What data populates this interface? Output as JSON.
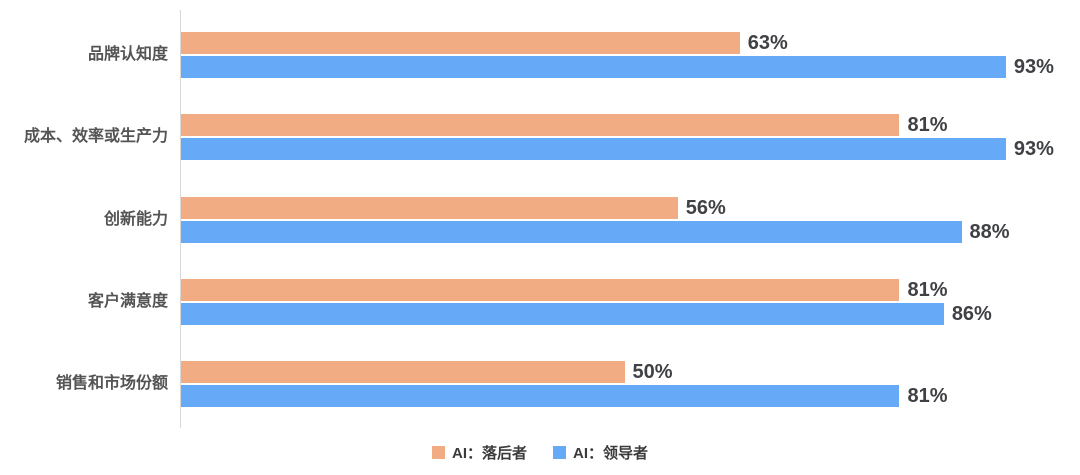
{
  "chart_data": {
    "type": "bar",
    "orientation": "horizontal",
    "title": "",
    "categories": [
      "品牌认知度",
      "成本、效率或生产力",
      "创新能力",
      "客户满意度",
      "销售和市场份额"
    ],
    "series": [
      {
        "name": "AI：落后者",
        "color": "#F2AC83",
        "values": [
          63,
          81,
          56,
          81,
          50
        ]
      },
      {
        "name": "AI：领导者",
        "color": "#66A9F7",
        "values": [
          93,
          93,
          88,
          86,
          81
        ]
      }
    ],
    "value_labels": [
      [
        "63%",
        "81%",
        "56%",
        "81%",
        "50%"
      ],
      [
        "93%",
        "93%",
        "88%",
        "86%",
        "81%"
      ]
    ],
    "value_suffix": "%",
    "xlim": [
      0,
      100
    ],
    "grid": false,
    "legend_position": "bottom",
    "axis_line_color": "#d8d8d8",
    "value_label_color": "#3f4145",
    "category_label_color": "#545454"
  },
  "legend": {
    "items": [
      {
        "label": "AI：落后者",
        "color": "#F2AC83"
      },
      {
        "label": "AI：领导者",
        "color": "#66A9F7"
      }
    ]
  }
}
